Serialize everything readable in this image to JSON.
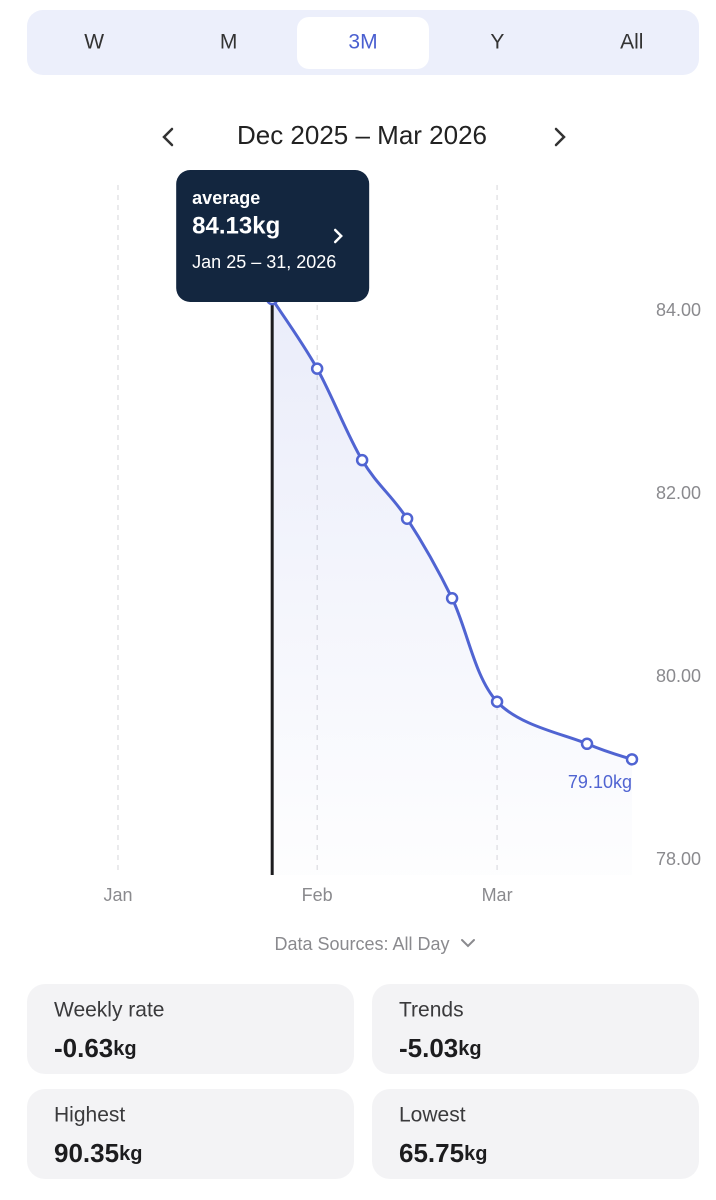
{
  "tabs": {
    "items": [
      "W",
      "M",
      "3M",
      "Y",
      "All"
    ],
    "selected": 2
  },
  "period": "Dec 2025 – Mar 2026",
  "chart_data": {
    "type": "line",
    "x": [
      24,
      31,
      38,
      45,
      52,
      59,
      73,
      80
    ],
    "series": [
      {
        "color": "#5064d2",
        "values": [
          84.13,
          83.37,
          82.37,
          81.73,
          80.86,
          79.73,
          79.27,
          79.1
        ],
        "value_labels": [
          null,
          null,
          null,
          null,
          null,
          null,
          null,
          "79.10kg"
        ]
      }
    ],
    "xlim": [
      -15,
      84
    ],
    "xticks": [
      {
        "value": 0,
        "label": "Jan"
      },
      {
        "value": 31,
        "label": "Feb"
      },
      {
        "value": 59,
        "label": "Mar"
      }
    ],
    "ylim": [
      78,
      85.5
    ],
    "yticks": [
      {
        "value": 78,
        "label": "78.00"
      },
      {
        "value": 80,
        "label": "80.00"
      },
      {
        "value": 82,
        "label": "82.00"
      },
      {
        "value": 84,
        "label": "84.00"
      }
    ],
    "grid": true,
    "tooltip": {
      "index": 0,
      "title": "average",
      "value_label": "84.13kg",
      "date": "Jan 25 – 31, 2026"
    }
  },
  "data_source": "Data Sources: All Day",
  "stats": [
    {
      "label": "Weekly rate",
      "value": "-0.63",
      "unit": "kg"
    },
    {
      "label": "Trends",
      "value": "-5.03",
      "unit": "kg"
    },
    {
      "label": "Highest",
      "value": "90.35",
      "unit": "kg"
    },
    {
      "label": "Lowest",
      "value": "65.75",
      "unit": "kg"
    }
  ]
}
